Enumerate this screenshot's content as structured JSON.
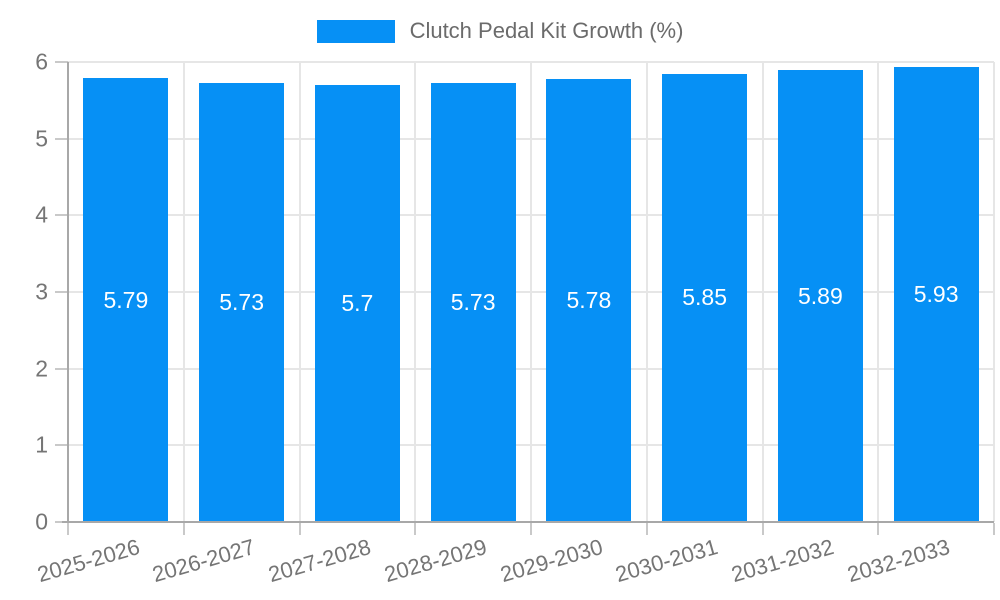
{
  "chart_data": {
    "type": "bar",
    "title": "Clutch Pedal Kit Growth (%)",
    "legend": {
      "label": "Clutch Pedal Kit Growth (%)",
      "position": "top"
    },
    "categories": [
      "2025-2026",
      "2026-2027",
      "2027-2028",
      "2028-2029",
      "2029-2030",
      "2030-2031",
      "2031-2032",
      "2032-2033"
    ],
    "values": [
      5.79,
      5.73,
      5.7,
      5.73,
      5.78,
      5.85,
      5.89,
      5.93
    ],
    "value_labels": [
      "5.79",
      "5.73",
      "5.7",
      "5.73",
      "5.78",
      "5.85",
      "5.89",
      "5.93"
    ],
    "xlabel": "",
    "ylabel": "",
    "ylim": [
      0,
      6
    ],
    "yticks": [
      0,
      1,
      2,
      3,
      4,
      5,
      6
    ],
    "grid": true,
    "colors": {
      "bar": "#0690f5",
      "grid": "#e6e6e6",
      "axis_line": "#a8a8a8",
      "tick": "#c9c9c9",
      "axis_text": "#757575",
      "legend_text": "#6b6b6b",
      "value_label": "#ffffff",
      "background": "#ffffff"
    }
  }
}
